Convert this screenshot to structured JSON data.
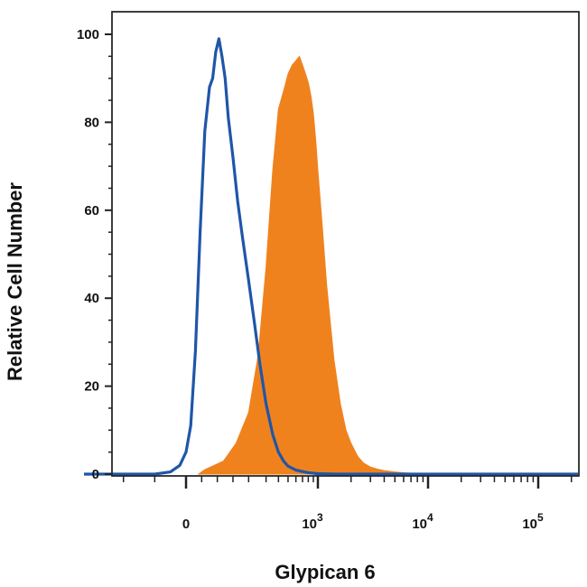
{
  "chart_data": {
    "type": "area",
    "title": "",
    "xlabel": "Glypican 6",
    "ylabel": "Relative Cell Number",
    "x_scale": "biexponential",
    "xlim": [
      -500,
      200000
    ],
    "ylim": [
      0,
      100
    ],
    "grid": false,
    "legend": "none",
    "y_ticks": [
      {
        "value": 0,
        "label": "0"
      },
      {
        "value": 20,
        "label": "20"
      },
      {
        "value": 40,
        "label": "40"
      },
      {
        "value": 60,
        "label": "60"
      },
      {
        "value": 80,
        "label": "80"
      },
      {
        "value": 100,
        "label": "100"
      }
    ],
    "x_ticks": [
      {
        "value": 0,
        "base": "0",
        "exp": ""
      },
      {
        "value": 1000,
        "base": "10",
        "exp": "3"
      },
      {
        "value": 10000,
        "base": "10",
        "exp": "4"
      },
      {
        "value": 100000,
        "base": "10",
        "exp": "5"
      }
    ],
    "series": [
      {
        "style": "filled",
        "color": "#f0821e",
        "x": [
          40,
          60,
          90,
          120,
          160,
          200,
          250,
          300,
          350,
          400,
          450,
          500,
          550,
          600,
          650,
          700,
          750,
          800,
          850,
          900,
          950,
          1000,
          1100,
          1200,
          1400,
          1600,
          1800,
          2000,
          2300,
          2600,
          3000,
          3500,
          4000,
          5000,
          6000,
          8000,
          10000
        ],
        "y": [
          0,
          1,
          2,
          3,
          7,
          14,
          27,
          47,
          69,
          83,
          87,
          91,
          93,
          94,
          95,
          93,
          91,
          89,
          86,
          82,
          76,
          69,
          56,
          43,
          26,
          16,
          10,
          7,
          4,
          2.5,
          1.6,
          1.1,
          0.8,
          0.5,
          0.3,
          0.1,
          0
        ]
      },
      {
        "style": "line",
        "color": "#1f56a8",
        "x": [
          -500,
          -100,
          -50,
          -20,
          0,
          15,
          30,
          45,
          60,
          75,
          85,
          95,
          105,
          115,
          125,
          135,
          150,
          165,
          180,
          200,
          230,
          260,
          300,
          350,
          400,
          450,
          500,
          600,
          800,
          1000,
          1500
        ],
        "y": [
          0,
          0,
          0.5,
          2,
          5,
          11,
          28,
          55,
          78,
          88,
          90,
          96,
          99,
          95,
          90,
          81,
          72,
          62,
          54,
          44,
          34,
          25,
          16,
          9,
          5,
          3,
          1.8,
          0.9,
          0.3,
          0.1,
          0
        ]
      }
    ]
  }
}
